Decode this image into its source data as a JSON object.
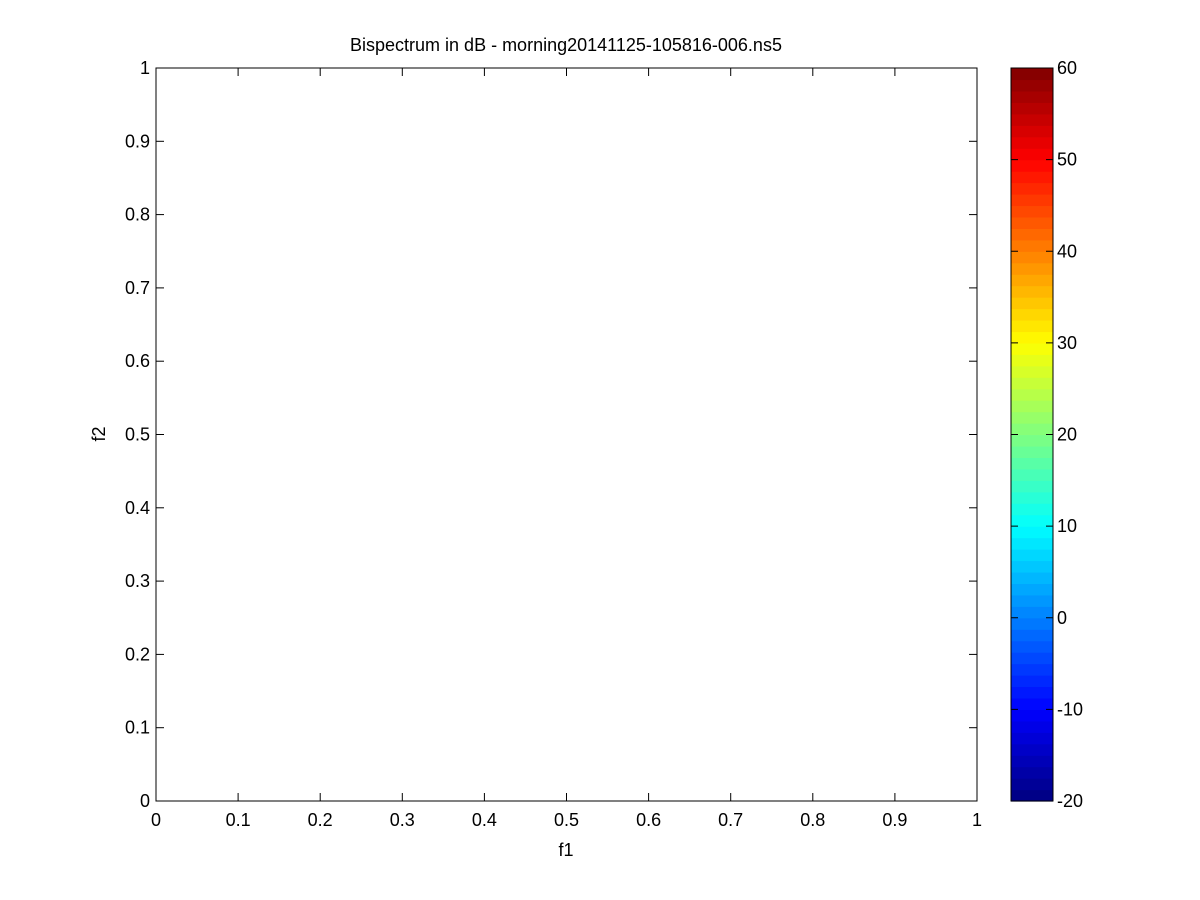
{
  "chart_data": {
    "type": "heatmap",
    "title": "Bispectrum in dB - morning20141125-105816-006.ns5",
    "xlabel": "f1",
    "ylabel": "f2",
    "xlim": [
      0,
      1
    ],
    "ylim": [
      0,
      1
    ],
    "x_ticks": [
      "0",
      "0.1",
      "0.2",
      "0.3",
      "0.4",
      "0.5",
      "0.6",
      "0.7",
      "0.8",
      "0.9",
      "1"
    ],
    "y_ticks": [
      "0",
      "0.1",
      "0.2",
      "0.3",
      "0.4",
      "0.5",
      "0.6",
      "0.7",
      "0.8",
      "0.9",
      "1"
    ],
    "grid": false,
    "values": [],
    "colorbar": {
      "colormap": "jet",
      "range": [
        -20,
        60
      ],
      "ticks": [
        "-20",
        "-10",
        "0",
        "10",
        "20",
        "30",
        "40",
        "50",
        "60"
      ],
      "placement": "right"
    }
  },
  "colors": {
    "axes": "#000000",
    "background": "#ffffff"
  }
}
